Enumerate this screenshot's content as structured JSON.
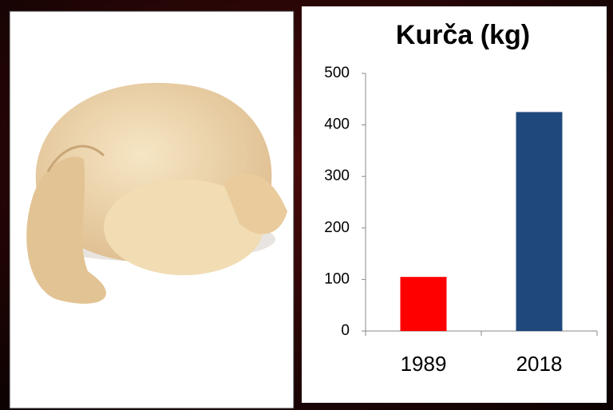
{
  "chart_data": {
    "type": "bar",
    "title": "Kurča (kg)",
    "categories": [
      "1989",
      "2018"
    ],
    "values": [
      105,
      425
    ],
    "colors": [
      "#ff0000",
      "#1f497d"
    ],
    "ylim": [
      0,
      500
    ],
    "yticks": [
      0,
      100,
      200,
      300,
      400,
      500
    ],
    "grid": false
  }
}
